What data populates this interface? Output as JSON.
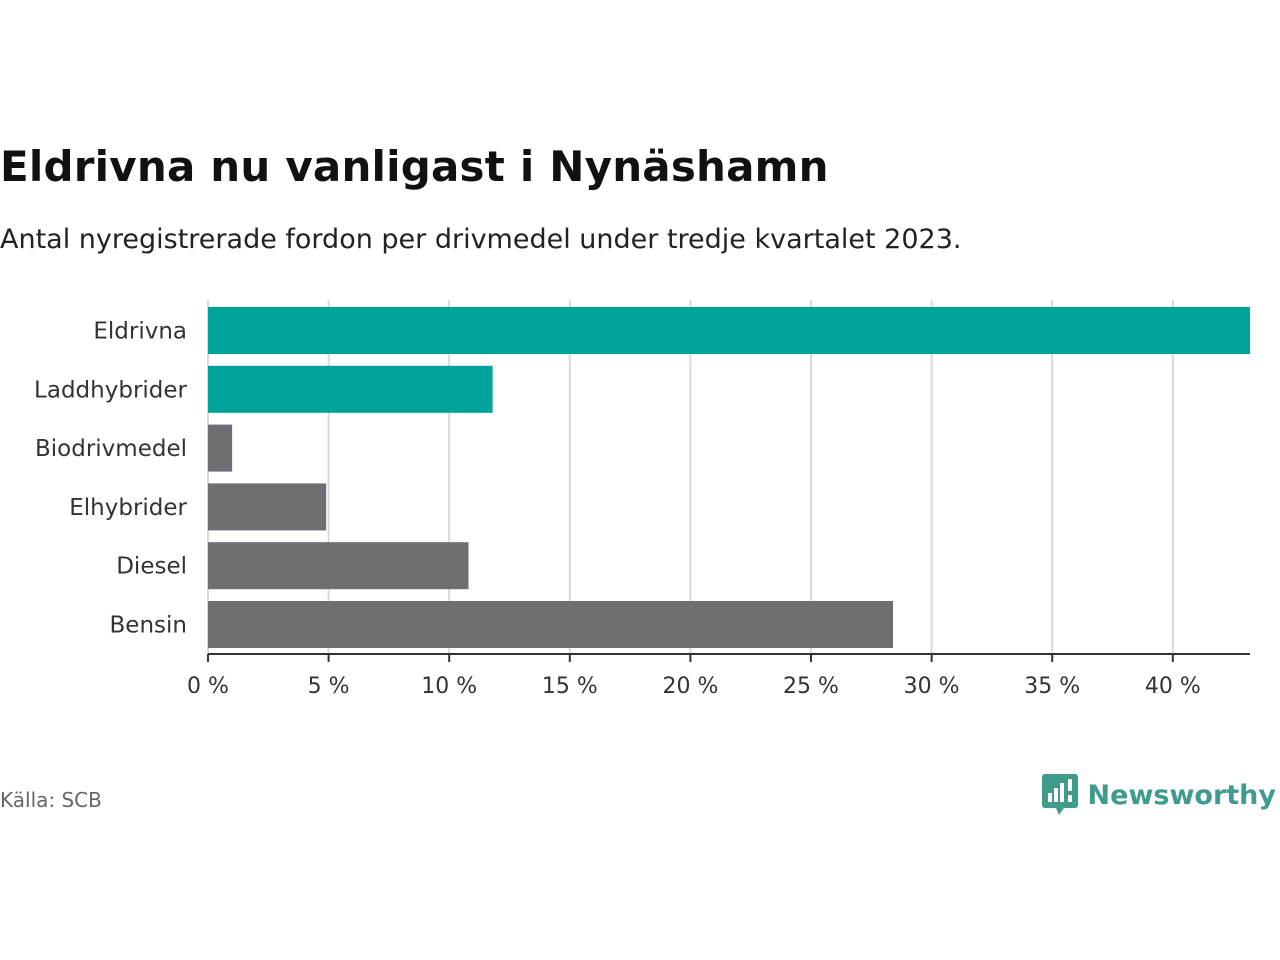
{
  "colors": {
    "highlight": "#00a39a",
    "neutral": "#6e6e73",
    "grid": "#d9d9d9",
    "axis": "#333333"
  },
  "chart_data": {
    "type": "bar",
    "orientation": "horizontal",
    "title": "Eldrivna nu vanligast i Nynäshamn",
    "subtitle": "Antal nyregistrerade fordon per drivmedel under tredje kvartalet 2023.",
    "categories": [
      "Eldrivna",
      "Laddhybrider",
      "Biodrivmedel",
      "Elhybrider",
      "Diesel",
      "Bensin"
    ],
    "values": [
      43.2,
      11.8,
      1.0,
      4.9,
      10.8,
      28.4
    ],
    "highlight": [
      true,
      true,
      false,
      false,
      false,
      false
    ],
    "xlim": [
      0,
      43.2
    ],
    "xticks": [
      0,
      5,
      10,
      15,
      20,
      25,
      30,
      35,
      40
    ],
    "xtick_labels": [
      "0 %",
      "5 %",
      "10 %",
      "15 %",
      "20 %",
      "25 %",
      "30 %",
      "35 %",
      "40 %"
    ],
    "xlabel": "",
    "ylabel": "",
    "grid": true,
    "legend": "none"
  },
  "footer": {
    "source": "Källa: SCB",
    "brand": "Newsworthy"
  }
}
